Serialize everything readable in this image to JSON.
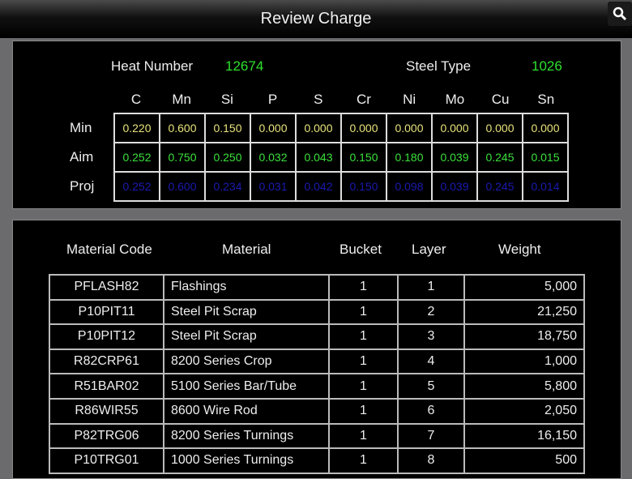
{
  "header": {
    "title": "Review Charge",
    "search_icon": "search-icon"
  },
  "summary": {
    "heat_label": "Heat Number",
    "heat_value": "12674",
    "steel_label": "Steel Type",
    "steel_value": "1026"
  },
  "chem": {
    "elements": [
      "C",
      "Mn",
      "Si",
      "P",
      "S",
      "Cr",
      "Ni",
      "Mo",
      "Cu",
      "Sn"
    ],
    "rows": [
      {
        "label": "Min",
        "values": [
          "0.220",
          "0.600",
          "0.150",
          "0.000",
          "0.000",
          "0.000",
          "0.000",
          "0.000",
          "0.000",
          "0.000"
        ]
      },
      {
        "label": "Aim",
        "values": [
          "0.252",
          "0.750",
          "0.250",
          "0.032",
          "0.043",
          "0.150",
          "0.180",
          "0.039",
          "0.245",
          "0.015"
        ]
      },
      {
        "label": "Proj",
        "values": [
          "0.252",
          "0.600",
          "0.234",
          "0.031",
          "0.042",
          "0.150",
          "0.098",
          "0.039",
          "0.245",
          "0.014"
        ]
      }
    ]
  },
  "materials": {
    "headers": [
      "Material Code",
      "Material",
      "Bucket",
      "Layer",
      "Weight"
    ],
    "rows": [
      [
        "PFLASH82",
        "Flashings",
        "1",
        "1",
        "5,000"
      ],
      [
        "P10PIT11",
        "Steel Pit Scrap",
        "1",
        "2",
        "21,250"
      ],
      [
        "P10PIT12",
        "Steel Pit Scrap",
        "1",
        "3",
        "18,750"
      ],
      [
        "R82CRP61",
        "8200 Series Crop",
        "1",
        "4",
        "1,000"
      ],
      [
        "R51BAR02",
        "5100 Series Bar/Tube",
        "1",
        "5",
        "5,800"
      ],
      [
        "R86WIR55",
        "8600 Wire Rod",
        "1",
        "6",
        "2,050"
      ],
      [
        "P82TRG06",
        "8200 Series Turnings",
        "1",
        "7",
        "16,150"
      ],
      [
        "P10TRG01",
        "1000 Series Turnings",
        "1",
        "8",
        "500"
      ]
    ]
  },
  "colors": {
    "min": "#e8e27a",
    "aim": "#3be03b",
    "proj": "#1a1ab0",
    "value_green": "#2de02d"
  }
}
